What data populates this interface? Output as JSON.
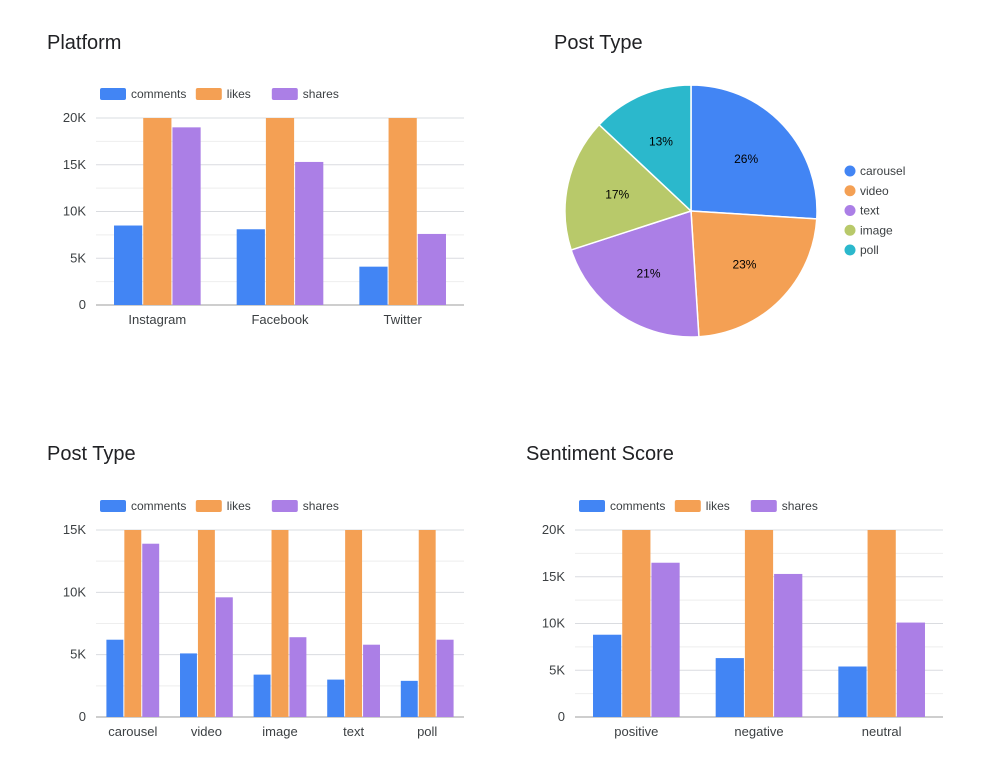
{
  "colors": {
    "comments": "#4285f4",
    "likes": "#f4a054",
    "shares": "#ab7fe6",
    "image": "#b8c96a",
    "poll": "#2bb8cc",
    "grid": "#e0e0e0",
    "axis": "#9e9e9e",
    "text": "#3c4043"
  },
  "chart_data": [
    {
      "id": "platform",
      "type": "bar",
      "title": "Platform",
      "categories": [
        "Instagram",
        "Facebook",
        "Twitter"
      ],
      "series": [
        {
          "name": "comments",
          "values": [
            8500,
            8100,
            4100
          ]
        },
        {
          "name": "likes",
          "values": [
            20000,
            20000,
            20000
          ]
        },
        {
          "name": "shares",
          "values": [
            19000,
            15300,
            7600
          ]
        }
      ],
      "ylim": [
        0,
        20000
      ],
      "yticks": [
        0,
        5000,
        10000,
        15000,
        20000
      ],
      "ytick_labels": [
        "0",
        "5K",
        "10K",
        "15K",
        "20K"
      ],
      "legend": "top-left",
      "grid": true
    },
    {
      "id": "post-type-pie",
      "type": "pie",
      "title": "Post Type",
      "labels": [
        "carousel",
        "video",
        "text",
        "image",
        "poll"
      ],
      "values": [
        26,
        23,
        21,
        17,
        13
      ],
      "value_labels": [
        "26%",
        "23%",
        "21%",
        "17%",
        "13%"
      ],
      "legend": "right"
    },
    {
      "id": "post-type-bar",
      "type": "bar",
      "title": "Post Type",
      "categories": [
        "carousel",
        "video",
        "image",
        "text",
        "poll"
      ],
      "series": [
        {
          "name": "comments",
          "values": [
            6200,
            5100,
            3400,
            3000,
            2900
          ]
        },
        {
          "name": "likes",
          "values": [
            15000,
            15000,
            15000,
            15000,
            15000
          ]
        },
        {
          "name": "shares",
          "values": [
            13900,
            9600,
            6400,
            5800,
            6200
          ]
        }
      ],
      "ylim": [
        0,
        15000
      ],
      "yticks": [
        0,
        5000,
        10000,
        15000
      ],
      "ytick_labels": [
        "0",
        "5K",
        "10K",
        "15K"
      ],
      "legend": "top-left",
      "grid": true
    },
    {
      "id": "sentiment",
      "type": "bar",
      "title": "Sentiment Score",
      "categories": [
        "positive",
        "negative",
        "neutral"
      ],
      "series": [
        {
          "name": "comments",
          "values": [
            8800,
            6300,
            5400
          ]
        },
        {
          "name": "likes",
          "values": [
            20000,
            20000,
            20000
          ]
        },
        {
          "name": "shares",
          "values": [
            16500,
            15300,
            10100
          ]
        }
      ],
      "ylim": [
        0,
        20000
      ],
      "yticks": [
        0,
        5000,
        10000,
        15000,
        20000
      ],
      "ytick_labels": [
        "0",
        "5K",
        "10K",
        "15K",
        "20K"
      ],
      "legend": "top-left",
      "grid": true
    }
  ]
}
